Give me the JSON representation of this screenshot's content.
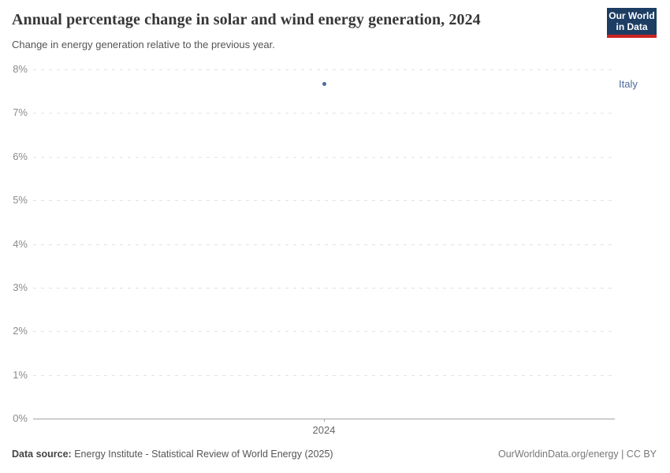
{
  "header": {
    "title": "Annual percentage change in solar and wind energy generation, 2024",
    "subtitle": "Change in energy generation relative to the previous year.",
    "logo": {
      "line1": "Our World",
      "line2": "in Data",
      "bg_color": "#1d3d63",
      "accent_color": "#cb2420"
    }
  },
  "chart_data": {
    "type": "scatter",
    "title": "Annual percentage change in solar and wind energy generation, 2024",
    "x": [
      2024
    ],
    "xtick_labels": [
      "2024"
    ],
    "series": [
      {
        "name": "Italy",
        "values": [
          7.67
        ],
        "color": "#4c6a9c"
      }
    ],
    "xlabel": "",
    "ylabel": "",
    "ylim": [
      0,
      8
    ],
    "ytick_step": 1,
    "ytick_suffix": "%",
    "grid": true,
    "gridline_style": "dashed",
    "legend_position": "right"
  },
  "footer": {
    "source_label": "Data source:",
    "source_text": " Energy Institute - Statistical Review of World Energy (2025)",
    "link_text": "OurWorldinData.org/energy | CC BY"
  }
}
